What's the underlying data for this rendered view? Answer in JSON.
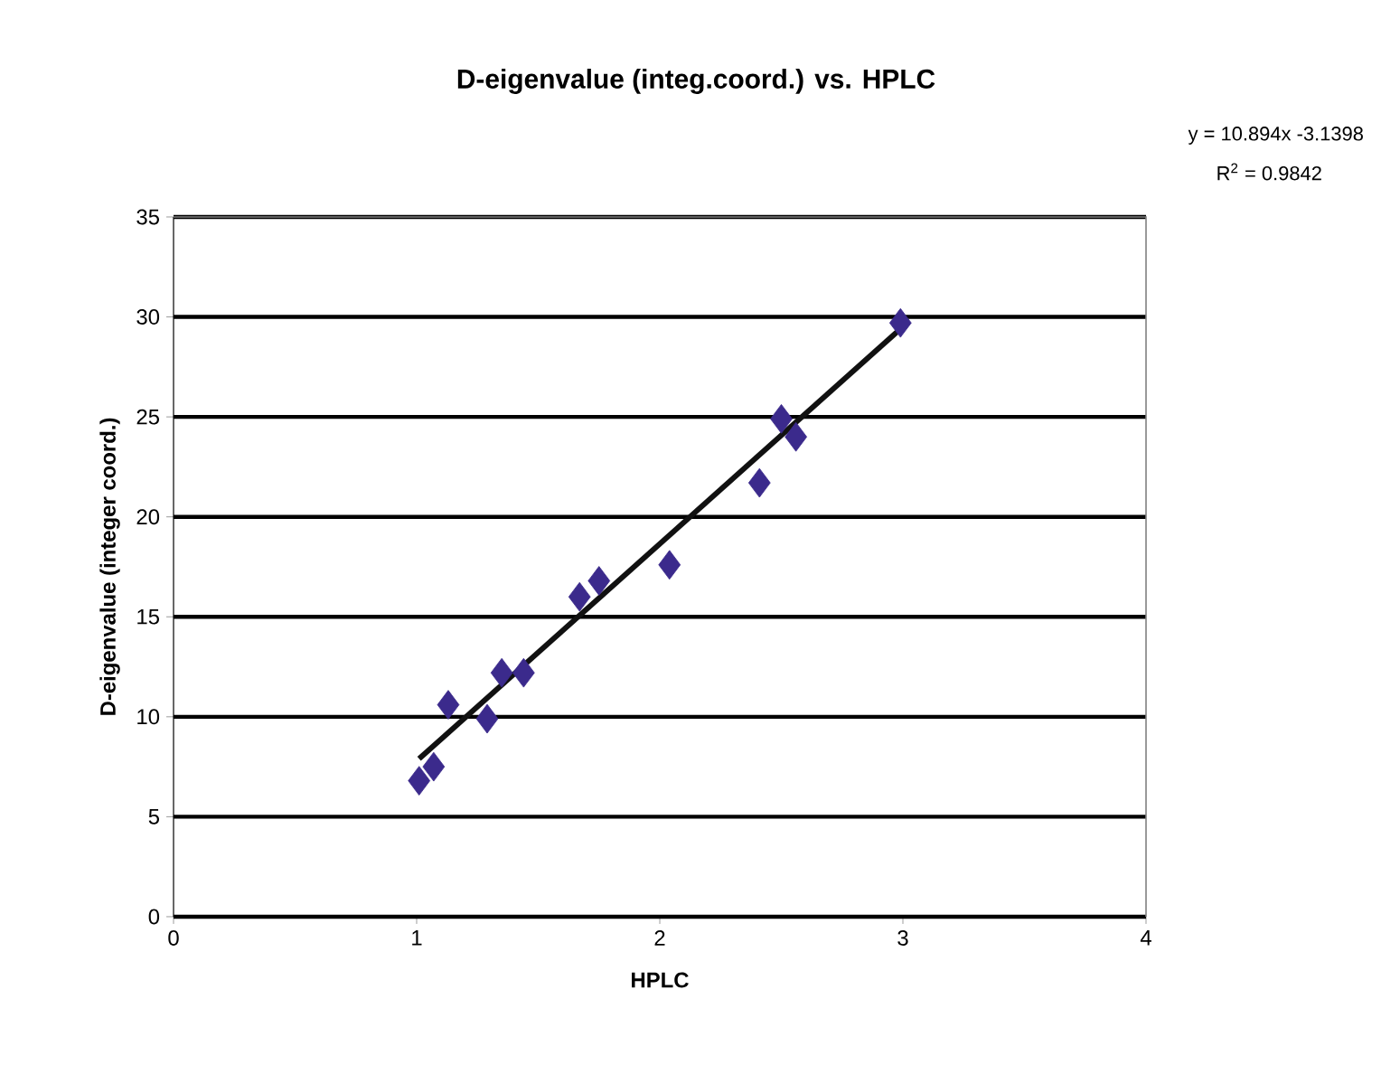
{
  "chart_data": {
    "type": "scatter",
    "title": "D-eigenvalue (integ.coord.) vs. HPLC",
    "xlabel": "HPLC",
    "ylabel": "D-eigenvalue (integer coord.)",
    "annotations": [
      "y = 10.894x -3.1398",
      "R$^{2}$ = 0.9842"
    ],
    "xlim": [
      0,
      4
    ],
    "xticks": [
      0,
      1,
      2,
      3,
      4
    ],
    "ylim": [
      0,
      35
    ],
    "yticks": [
      0,
      5,
      10,
      15,
      20,
      25,
      30,
      35
    ],
    "grid": "y",
    "series": [
      {
        "color": "#3b2a8c",
        "marker": "diamond",
        "x": [
          1.01,
          1.07,
          1.13,
          1.29,
          1.35,
          1.44,
          1.67,
          1.75,
          2.04,
          2.41,
          2.5,
          2.56,
          2.99
        ],
        "values": [
          6.8,
          7.5,
          10.6,
          9.9,
          12.2,
          12.2,
          16,
          16.8,
          17.6,
          21.7,
          24.9,
          24,
          29.7
        ]
      },
      {
        "type": "line",
        "color": "#111111",
        "x": [
          1.01,
          2.99
        ],
        "values": [
          7.9,
          29.4
        ]
      }
    ]
  }
}
